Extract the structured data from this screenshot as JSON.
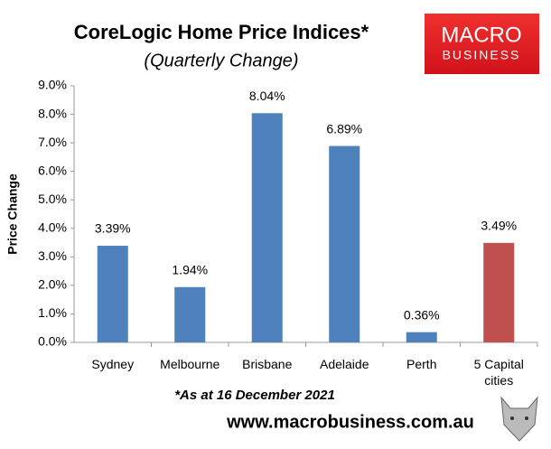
{
  "chart_data": {
    "type": "bar",
    "title": "CoreLogic Home Price Indices*",
    "subtitle": "(Quarterly Change)",
    "y_label": "Price Change",
    "note": "*As at 16 December 2021",
    "website": "www.macrobusiness.com.au",
    "logo": [
      "MACRO",
      "BUSINESS"
    ],
    "categories": [
      "Sydney",
      "Melbourne",
      "Brisbane",
      "Adelaide",
      "Perth",
      "5 Capital cities"
    ],
    "values": [
      3.39,
      1.94,
      8.04,
      6.89,
      0.36,
      3.49
    ],
    "value_labels": [
      "3.39%",
      "1.94%",
      "8.04%",
      "6.89%",
      "0.36%",
      "3.49%"
    ],
    "colors": [
      "#4f81bd",
      "#4f81bd",
      "#4f81bd",
      "#4f81bd",
      "#4f81bd",
      "#c0504d"
    ],
    "ylim": [
      0,
      9
    ],
    "yticks": [
      {
        "value": 0,
        "label": "0.0%"
      },
      {
        "value": 1,
        "label": "1.0%"
      },
      {
        "value": 2,
        "label": "2.0%"
      },
      {
        "value": 3,
        "label": "3.0%"
      },
      {
        "value": 4,
        "label": "4.0%"
      },
      {
        "value": 5,
        "label": "5.0%"
      },
      {
        "value": 6,
        "label": "6.0%"
      },
      {
        "value": 7,
        "label": "7.0%"
      },
      {
        "value": 8,
        "label": "8.0%"
      },
      {
        "value": 9,
        "label": "9.0%"
      }
    ],
    "grid": false
  }
}
